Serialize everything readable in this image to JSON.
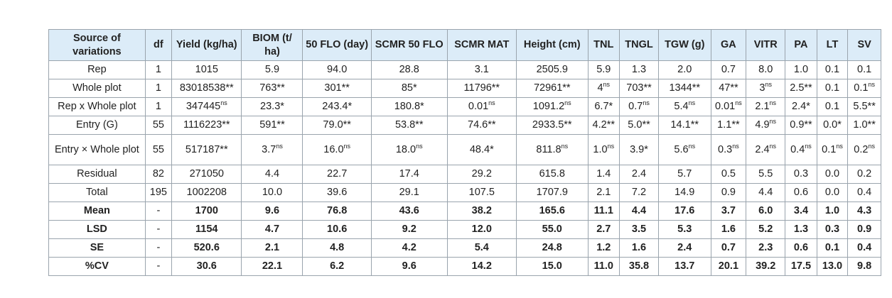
{
  "table": {
    "headers": [
      "Source of variations",
      "df",
      "Yield (kg/ha)",
      "BIOM (t/ ha)",
      "50 FLO (day)",
      "SCMR 50 FLO",
      "SCMR MAT",
      "Height (cm)",
      "TNL",
      "TNGL",
      "TGW (g)",
      "GA",
      "VITR",
      "PA",
      "LT",
      "SV"
    ],
    "rows": [
      {
        "cells": [
          [
            "Rep",
            ""
          ],
          [
            "1",
            ""
          ],
          [
            "1015",
            ""
          ],
          [
            "5.9",
            ""
          ],
          [
            "94.0",
            ""
          ],
          [
            "28.8",
            ""
          ],
          [
            "3.1",
            ""
          ],
          [
            "2505.9",
            ""
          ],
          [
            "5.9",
            ""
          ],
          [
            "1.3",
            ""
          ],
          [
            "2.0",
            ""
          ],
          [
            "0.7",
            ""
          ],
          [
            "8.0",
            ""
          ],
          [
            "1.0",
            ""
          ],
          [
            "0.1",
            ""
          ],
          [
            "0.1",
            ""
          ]
        ]
      },
      {
        "cells": [
          [
            "Whole plot",
            ""
          ],
          [
            "1",
            ""
          ],
          [
            "83018538**",
            ""
          ],
          [
            "763**",
            ""
          ],
          [
            "301**",
            ""
          ],
          [
            "85*",
            ""
          ],
          [
            "11796**",
            ""
          ],
          [
            "72961**",
            ""
          ],
          [
            "4",
            "ns"
          ],
          [
            "703**",
            ""
          ],
          [
            "1344**",
            ""
          ],
          [
            "47**",
            ""
          ],
          [
            "3",
            "ns"
          ],
          [
            "2.5**",
            ""
          ],
          [
            "0.1",
            ""
          ],
          [
            "0.1",
            "ns"
          ]
        ]
      },
      {
        "cells": [
          [
            "Rep x Whole plot",
            ""
          ],
          [
            "1",
            ""
          ],
          [
            "347445",
            "ns"
          ],
          [
            "23.3*",
            ""
          ],
          [
            "243.4*",
            ""
          ],
          [
            "180.8*",
            ""
          ],
          [
            "0.01",
            "ns"
          ],
          [
            "1091.2",
            "ns"
          ],
          [
            "6.7*",
            ""
          ],
          [
            "0.7",
            "ns"
          ],
          [
            "5.4",
            "ns"
          ],
          [
            "0.01",
            "ns"
          ],
          [
            "2.1",
            "ns"
          ],
          [
            "2.4*",
            ""
          ],
          [
            "0.1",
            ""
          ],
          [
            "5.5**",
            ""
          ]
        ]
      },
      {
        "cells": [
          [
            "Entry (G)",
            ""
          ],
          [
            "55",
            ""
          ],
          [
            "1116223**",
            ""
          ],
          [
            "591**",
            ""
          ],
          [
            "79.0**",
            ""
          ],
          [
            "53.8**",
            ""
          ],
          [
            "74.6**",
            ""
          ],
          [
            "2933.5**",
            ""
          ],
          [
            "4.2**",
            ""
          ],
          [
            "5.0**",
            ""
          ],
          [
            "14.1**",
            ""
          ],
          [
            "1.1**",
            ""
          ],
          [
            "4.9",
            "ns"
          ],
          [
            "0.9**",
            ""
          ],
          [
            "0.0*",
            ""
          ],
          [
            "1.0**",
            ""
          ]
        ]
      },
      {
        "tall": true,
        "cells": [
          [
            "Entry × Whole plot",
            ""
          ],
          [
            "55",
            ""
          ],
          [
            "517187**",
            ""
          ],
          [
            "3.7",
            "ns"
          ],
          [
            "16.0",
            "ns"
          ],
          [
            "18.0",
            "ns"
          ],
          [
            "48.4*",
            ""
          ],
          [
            "811.8",
            "ns"
          ],
          [
            "1.0",
            "ns"
          ],
          [
            "3.9*",
            ""
          ],
          [
            "5.6",
            "ns"
          ],
          [
            "0.3",
            "ns"
          ],
          [
            "2.4",
            "ns"
          ],
          [
            "0.4",
            "ns"
          ],
          [
            "0.1",
            "ns"
          ],
          [
            "0.2",
            "ns"
          ]
        ]
      },
      {
        "cells": [
          [
            "Residual",
            ""
          ],
          [
            "82",
            ""
          ],
          [
            "271050",
            ""
          ],
          [
            "4.4",
            ""
          ],
          [
            "22.7",
            ""
          ],
          [
            "17.4",
            ""
          ],
          [
            "29.2",
            ""
          ],
          [
            "615.8",
            ""
          ],
          [
            "1.4",
            ""
          ],
          [
            "2.4",
            ""
          ],
          [
            "5.7",
            ""
          ],
          [
            "0.5",
            ""
          ],
          [
            "5.5",
            ""
          ],
          [
            "0.3",
            ""
          ],
          [
            "0.0",
            ""
          ],
          [
            "0.2",
            ""
          ]
        ]
      },
      {
        "cells": [
          [
            "Total",
            ""
          ],
          [
            "195",
            ""
          ],
          [
            "1002208",
            ""
          ],
          [
            "10.0",
            ""
          ],
          [
            "39.6",
            ""
          ],
          [
            "29.1",
            ""
          ],
          [
            "107.5",
            ""
          ],
          [
            "1707.9",
            ""
          ],
          [
            "2.1",
            ""
          ],
          [
            "7.2",
            ""
          ],
          [
            "14.9",
            ""
          ],
          [
            "0.9",
            ""
          ],
          [
            "4.4",
            ""
          ],
          [
            "0.6",
            ""
          ],
          [
            "0.0",
            ""
          ],
          [
            "0.4",
            ""
          ]
        ]
      },
      {
        "bold": true,
        "cells": [
          [
            "Mean",
            ""
          ],
          [
            "-",
            ""
          ],
          [
            "1700",
            ""
          ],
          [
            "9.6",
            ""
          ],
          [
            "76.8",
            ""
          ],
          [
            "43.6",
            ""
          ],
          [
            "38.2",
            ""
          ],
          [
            "165.6",
            ""
          ],
          [
            "11.1",
            ""
          ],
          [
            "4.4",
            ""
          ],
          [
            "17.6",
            ""
          ],
          [
            "3.7",
            ""
          ],
          [
            "6.0",
            ""
          ],
          [
            "3.4",
            ""
          ],
          [
            "1.0",
            ""
          ],
          [
            "4.3",
            ""
          ]
        ]
      },
      {
        "bold": true,
        "boldfirst": true,
        "cells": [
          [
            "LSD",
            ""
          ],
          [
            "-",
            ""
          ],
          [
            "1154",
            ""
          ],
          [
            "4.7",
            ""
          ],
          [
            "10.6",
            ""
          ],
          [
            "9.2",
            ""
          ],
          [
            "12.0",
            ""
          ],
          [
            "55.0",
            ""
          ],
          [
            "2.7",
            ""
          ],
          [
            "3.5",
            ""
          ],
          [
            "5.3",
            ""
          ],
          [
            "1.6",
            ""
          ],
          [
            "5.2",
            ""
          ],
          [
            "1.3",
            ""
          ],
          [
            "0.3",
            ""
          ],
          [
            "0.9",
            ""
          ]
        ]
      },
      {
        "bold": true,
        "boldfirst": true,
        "cells": [
          [
            "SE",
            ""
          ],
          [
            "-",
            ""
          ],
          [
            "520.6",
            ""
          ],
          [
            "2.1",
            ""
          ],
          [
            "4.8",
            ""
          ],
          [
            "4.2",
            ""
          ],
          [
            "5.4",
            ""
          ],
          [
            "24.8",
            ""
          ],
          [
            "1.2",
            ""
          ],
          [
            "1.6",
            ""
          ],
          [
            "2.4",
            ""
          ],
          [
            "0.7",
            ""
          ],
          [
            "2.3",
            ""
          ],
          [
            "0.6",
            ""
          ],
          [
            "0.1",
            ""
          ],
          [
            "0.4",
            ""
          ]
        ]
      },
      {
        "bold": true,
        "boldfirst": true,
        "cells": [
          [
            "%CV",
            ""
          ],
          [
            "-",
            ""
          ],
          [
            "30.6",
            ""
          ],
          [
            "22.1",
            ""
          ],
          [
            "6.2",
            ""
          ],
          [
            "9.6",
            ""
          ],
          [
            "14.2",
            ""
          ],
          [
            "15.0",
            ""
          ],
          [
            "11.0",
            ""
          ],
          [
            "35.8",
            ""
          ],
          [
            "13.7",
            ""
          ],
          [
            "20.1",
            ""
          ],
          [
            "39.2",
            ""
          ],
          [
            "17.5",
            ""
          ],
          [
            "13.0",
            ""
          ],
          [
            "9.8",
            ""
          ]
        ]
      }
    ]
  }
}
